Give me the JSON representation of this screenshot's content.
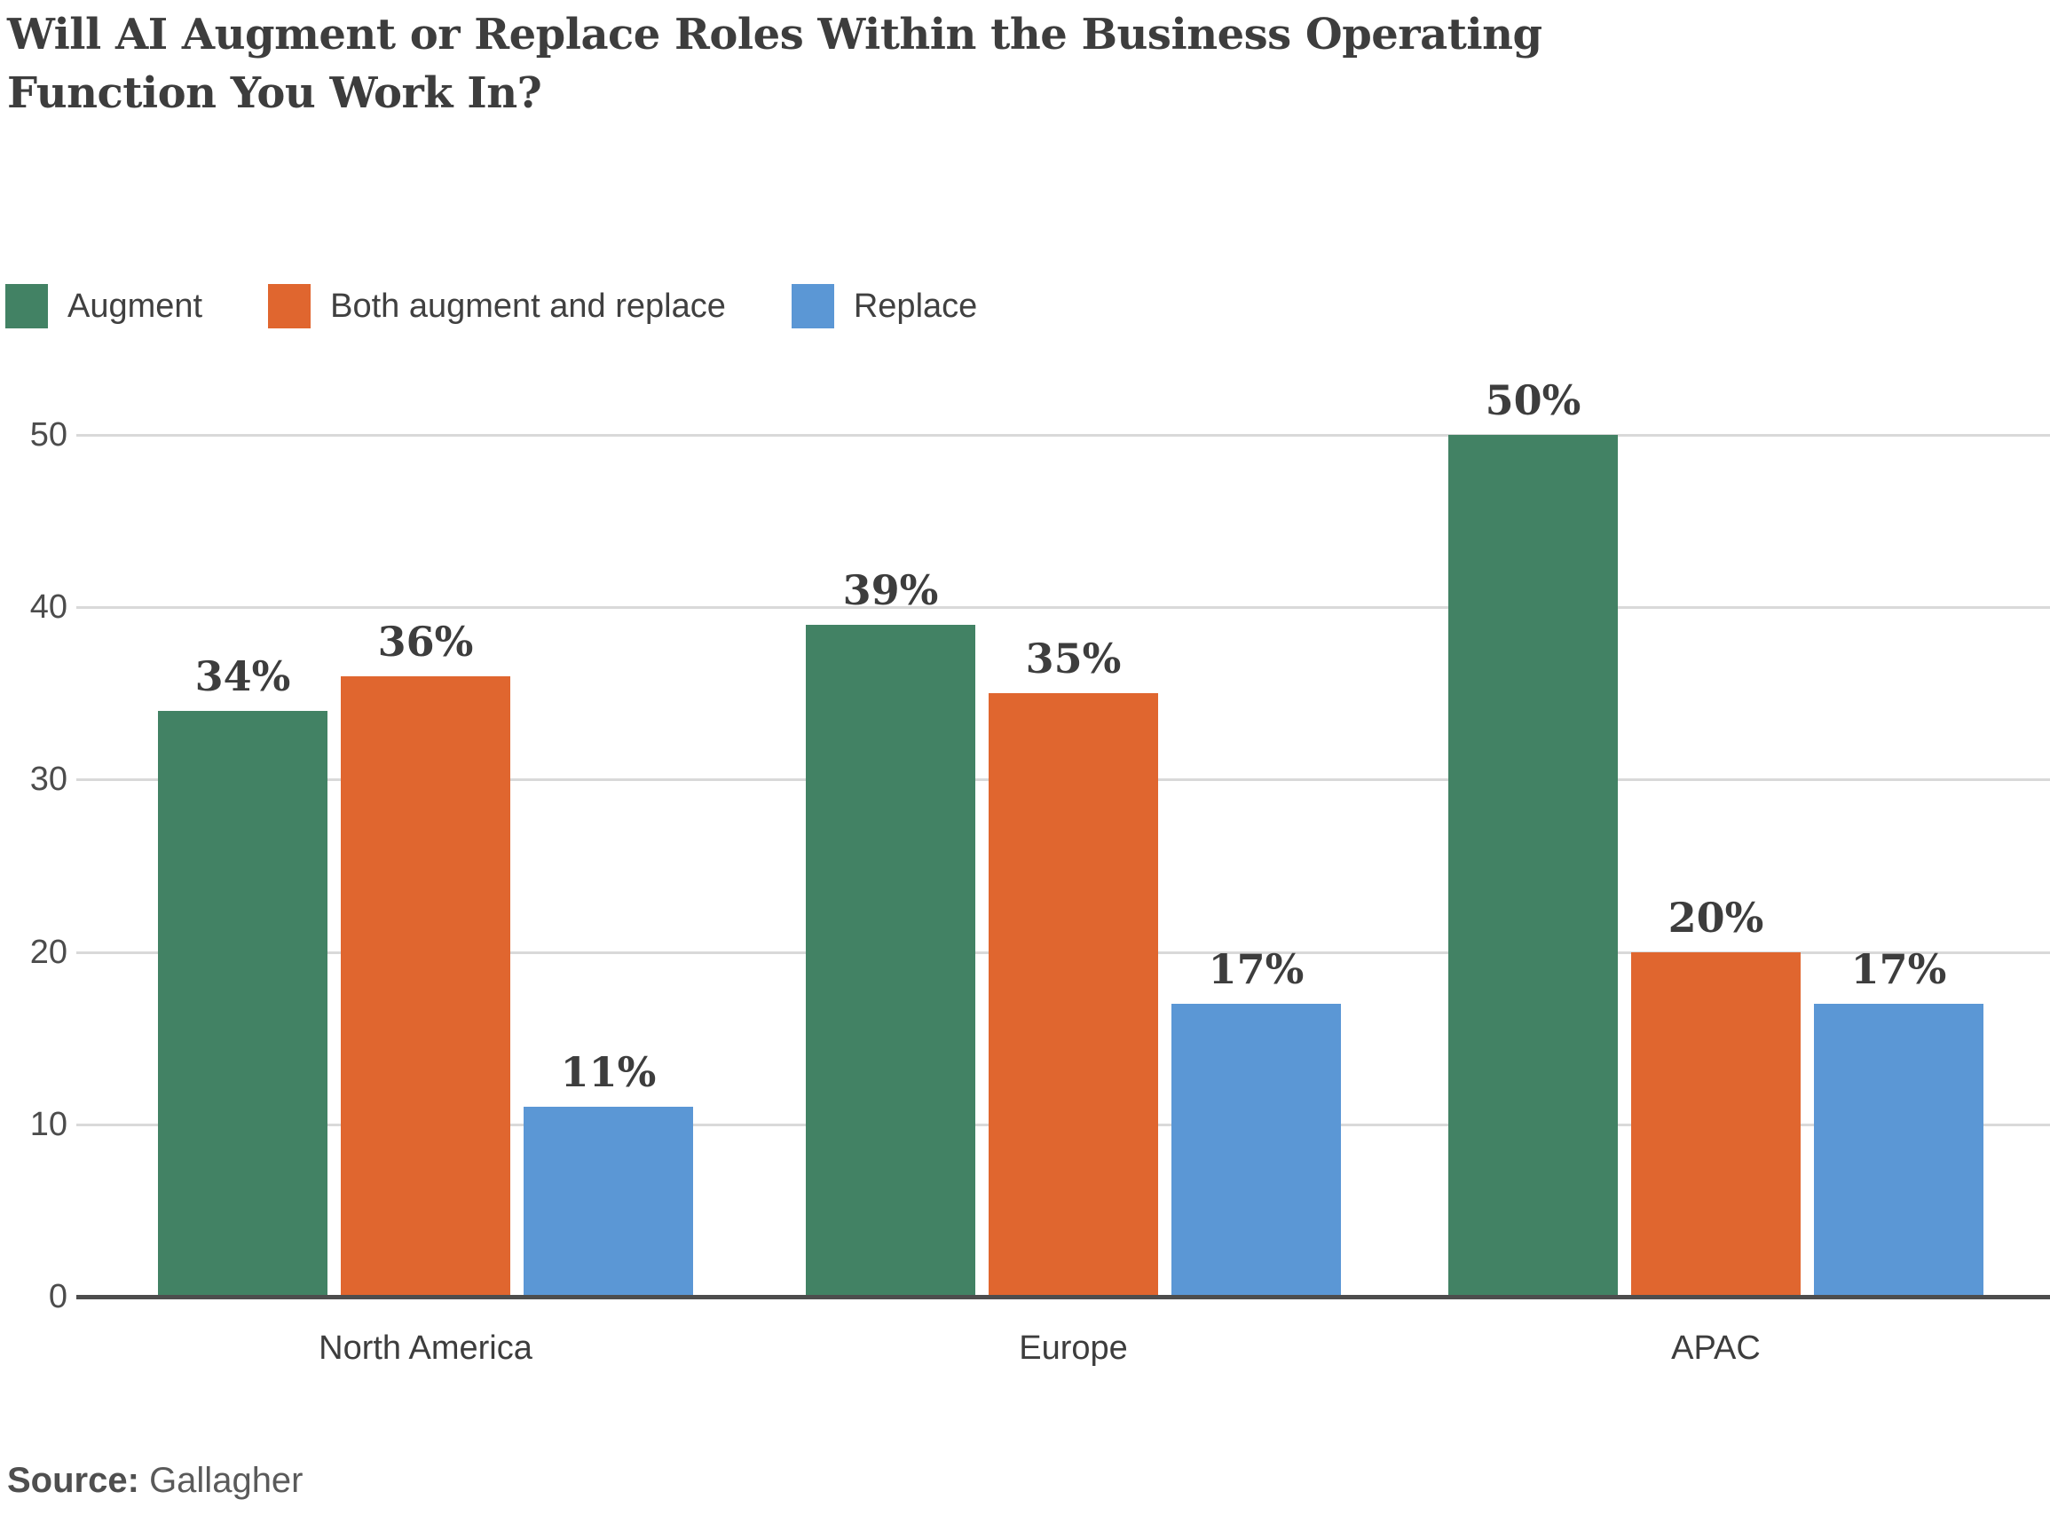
{
  "header": {
    "title_lines": [
      "Will AI Augment or Replace Roles Within the Business Operating",
      "Function You Work In?"
    ]
  },
  "chart_data": {
    "type": "bar",
    "title": "Will AI Augment or Replace Roles Within the Business Operating Function You Work In?",
    "categories": [
      "North America",
      "Europe",
      "APAC"
    ],
    "series": [
      {
        "name": "Augment",
        "color": "#428264",
        "values": [
          34,
          39,
          50
        ]
      },
      {
        "name": "Both augment and replace",
        "color": "#E0662F",
        "values": [
          36,
          35,
          20
        ]
      },
      {
        "name": "Replace",
        "color": "#5B97D5",
        "values": [
          11,
          17,
          17
        ]
      }
    ],
    "value_suffix": "%",
    "ylabel": "",
    "xlabel": "",
    "ylim": [
      0,
      50
    ],
    "yticks": [
      0,
      10,
      20,
      30,
      40,
      50
    ],
    "grid": true,
    "legend_position": "top-left",
    "colors": {
      "text_dark": "#3d3d3d",
      "tick_text": "#4c4c4c",
      "gridline": "#d9d9d9",
      "axis": "#4d4d4d"
    }
  },
  "footer": {
    "source_label": "Source:",
    "source_value": "Gallagher"
  }
}
